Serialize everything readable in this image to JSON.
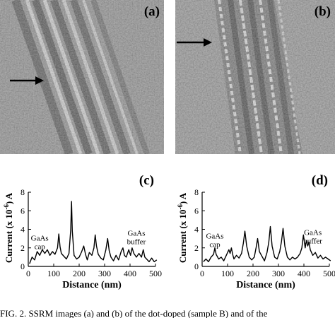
{
  "figure": {
    "caption": "FIG. 2. SSRM images (a) and (b) of the dot-doped (sample B) and of the"
  },
  "images": [
    {
      "panel_label": "(a)"
    },
    {
      "panel_label": "(b)"
    }
  ],
  "chart_data": [
    {
      "type": "line",
      "panel_label": "(c)",
      "xlabel": "Distance (nm)",
      "ylabel": "Current (x 10-6) A",
      "xlim": [
        0,
        500
      ],
      "ylim": [
        0,
        8
      ],
      "xticks": [
        0,
        100,
        200,
        300,
        400,
        500
      ],
      "yticks": [
        0,
        2,
        4,
        6,
        8
      ],
      "grid": false,
      "annotations": [
        {
          "lines": [
            "GaAs",
            "cap"
          ],
          "x": 45,
          "y": 2.8
        },
        {
          "lines": [
            "GaAs",
            "buffer"
          ],
          "x": 425,
          "y": 3.3
        }
      ],
      "series": [
        {
          "x": [
            5,
            15,
            25,
            35,
            45,
            55,
            65,
            75,
            85,
            95,
            105,
            115,
            120,
            125,
            130,
            140,
            150,
            160,
            167,
            170,
            173,
            180,
            190,
            200,
            210,
            218,
            225,
            232,
            240,
            250,
            258,
            263,
            268,
            275,
            285,
            295,
            305,
            312,
            318,
            325,
            335,
            345,
            355,
            365,
            372,
            378,
            385,
            395,
            402,
            408,
            415,
            425,
            435,
            445,
            452,
            458,
            465,
            475,
            485,
            495,
            505
          ],
          "y": [
            0.3,
            1.0,
            0.7,
            1.6,
            1.2,
            1.8,
            1.4,
            1.8,
            1.2,
            1.6,
            1.3,
            2.0,
            3.5,
            2.1,
            1.4,
            1.1,
            0.8,
            1.4,
            4.0,
            7.0,
            3.8,
            1.2,
            0.8,
            1.0,
            1.6,
            2.2,
            1.3,
            0.7,
            1.5,
            1.2,
            2.0,
            3.4,
            2.2,
            1.3,
            0.9,
            0.7,
            1.8,
            3.0,
            1.7,
            1.0,
            0.6,
            1.2,
            0.7,
            1.6,
            2.0,
            1.2,
            1.0,
            1.8,
            1.2,
            2.0,
            1.4,
            1.0,
            1.4,
            1.0,
            1.8,
            1.0,
            0.8,
            0.5,
            0.9,
            0.5,
            0.7
          ]
        }
      ]
    },
    {
      "type": "line",
      "panel_label": "(d)",
      "xlabel": "Distance (nm)",
      "ylabel": "Current (x 10-6) A",
      "xlim": [
        0,
        500
      ],
      "ylim": [
        0,
        8
      ],
      "xticks": [
        0,
        100,
        200,
        300,
        400,
        500
      ],
      "yticks": [
        0,
        2,
        4,
        6,
        8
      ],
      "grid": false,
      "annotations": [
        {
          "lines": [
            "GaAs",
            "cap"
          ],
          "x": 50,
          "y": 3.0
        },
        {
          "lines": [
            "GaAs",
            "buffer"
          ],
          "x": 435,
          "y": 3.4
        }
      ],
      "series": [
        {
          "x": [
            5,
            15,
            25,
            35,
            45,
            50,
            55,
            65,
            75,
            85,
            95,
            105,
            110,
            115,
            120,
            125,
            135,
            145,
            155,
            162,
            168,
            175,
            185,
            195,
            205,
            212,
            218,
            225,
            235,
            245,
            255,
            262,
            268,
            275,
            285,
            295,
            305,
            312,
            318,
            325,
            335,
            345,
            355,
            365,
            375,
            385,
            392,
            398,
            405,
            410,
            415,
            420,
            425,
            435,
            445,
            455,
            465,
            475,
            485,
            495,
            505
          ],
          "y": [
            0.5,
            0.8,
            0.5,
            1.0,
            1.3,
            2.0,
            1.3,
            0.8,
            1.0,
            0.6,
            1.2,
            1.8,
            1.4,
            2.0,
            1.3,
            0.8,
            1.2,
            0.9,
            1.4,
            2.5,
            3.8,
            2.2,
            1.0,
            0.7,
            1.0,
            2.0,
            3.0,
            1.6,
            1.1,
            0.6,
            1.5,
            2.6,
            4.3,
            2.2,
            1.0,
            0.8,
            1.6,
            2.7,
            4.1,
            2.2,
            1.0,
            0.7,
            1.0,
            0.8,
            1.0,
            1.4,
            2.0,
            3.4,
            2.0,
            2.8,
            2.2,
            2.6,
            1.8,
            1.2,
            1.5,
            0.9,
            1.2,
            0.8,
            1.0,
            0.8,
            0.6
          ]
        }
      ]
    }
  ]
}
